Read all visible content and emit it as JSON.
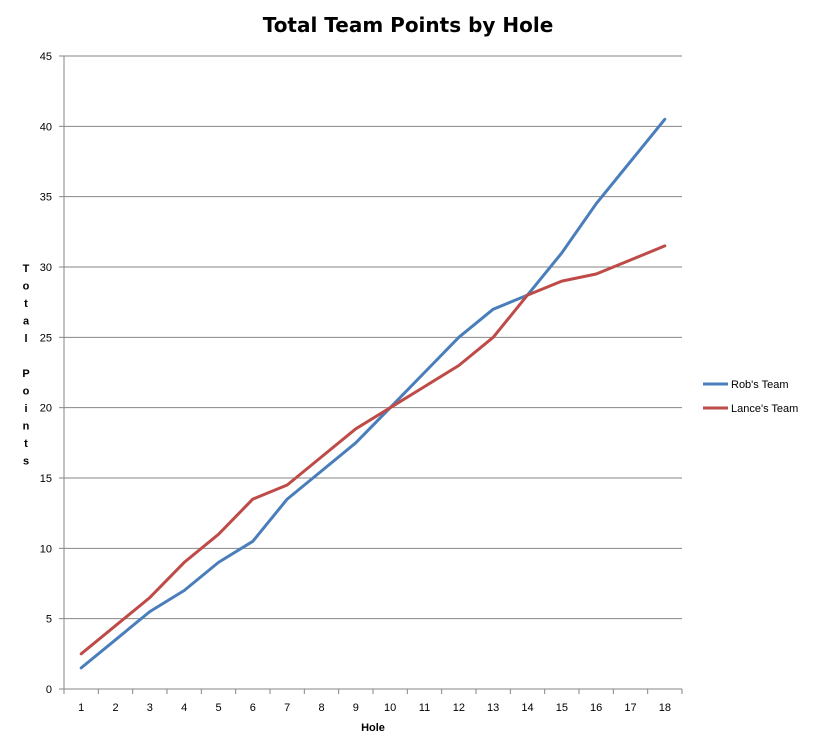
{
  "chart_data": {
    "type": "line",
    "title": "Total Team Points by Hole",
    "xlabel": "Hole",
    "ylabel": "Total Points",
    "x": [
      1,
      2,
      3,
      4,
      5,
      6,
      7,
      8,
      9,
      10,
      11,
      12,
      13,
      14,
      15,
      16,
      17,
      18
    ],
    "ylim": [
      0,
      45
    ],
    "yticks": [
      0,
      5,
      10,
      15,
      20,
      25,
      30,
      35,
      40,
      45
    ],
    "grid": true,
    "legend_position": "right",
    "series": [
      {
        "name": "Rob's Team",
        "color": "#4a7ebb",
        "values": [
          1.5,
          3.5,
          5.5,
          7,
          9,
          10.5,
          13.5,
          15.5,
          17.5,
          20,
          22.5,
          25,
          27,
          28,
          31,
          34.5,
          37.5,
          40.5
        ]
      },
      {
        "name": "Lance's Team",
        "color": "#be4b48",
        "values": [
          2.5,
          4.5,
          6.5,
          9,
          11,
          13.5,
          14.5,
          16.5,
          18.5,
          20,
          21.5,
          23,
          25,
          28,
          29,
          29.5,
          30.5,
          31.5
        ]
      }
    ]
  }
}
